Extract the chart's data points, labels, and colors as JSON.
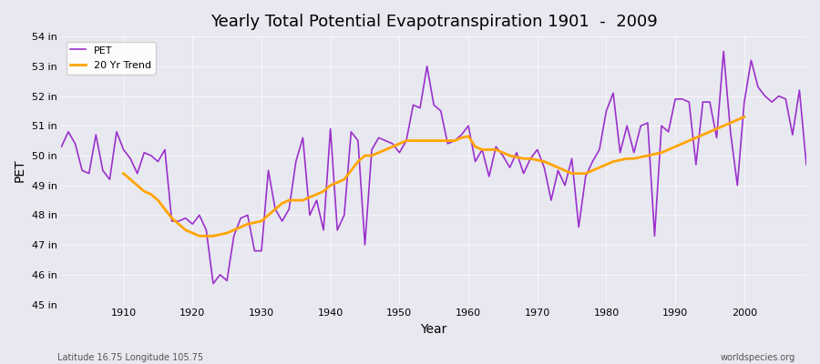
{
  "title": "Yearly Total Potential Evapotranspiration 1901  -  2009",
  "xlabel": "Year",
  "ylabel": "PET",
  "subtitle_left": "Latitude 16.75 Longitude 105.75",
  "subtitle_right": "worldspecies.org",
  "legend_labels": [
    "PET",
    "20 Yr Trend"
  ],
  "pet_color": "#9B30CC",
  "trend_color": "#FFA500",
  "background_color": "#E8E8F0",
  "ylim": [
    45,
    54
  ],
  "yticks": [
    45,
    46,
    47,
    48,
    49,
    50,
    51,
    52,
    53,
    54
  ],
  "ytick_labels": [
    "45 in",
    "46 in",
    "47 in",
    "48 in",
    "49 in",
    "50 in",
    "51 in",
    "52 in",
    "53 in",
    "54 in"
  ],
  "years": [
    1901,
    1902,
    1903,
    1904,
    1905,
    1906,
    1907,
    1908,
    1909,
    1910,
    1911,
    1912,
    1913,
    1914,
    1915,
    1916,
    1917,
    1918,
    1919,
    1920,
    1921,
    1922,
    1923,
    1924,
    1925,
    1926,
    1927,
    1928,
    1929,
    1930,
    1931,
    1932,
    1933,
    1934,
    1935,
    1936,
    1937,
    1938,
    1939,
    1940,
    1941,
    1942,
    1943,
    1944,
    1945,
    1946,
    1947,
    1948,
    1949,
    1950,
    1951,
    1952,
    1953,
    1954,
    1955,
    1956,
    1957,
    1958,
    1959,
    1960,
    1961,
    1962,
    1963,
    1964,
    1965,
    1966,
    1967,
    1968,
    1969,
    1970,
    1971,
    1972,
    1973,
    1974,
    1975,
    1976,
    1977,
    1978,
    1979,
    1980,
    1981,
    1982,
    1983,
    1984,
    1985,
    1986,
    1987,
    1988,
    1989,
    1990,
    1991,
    1992,
    1993,
    1994,
    1995,
    1996,
    1997,
    1998,
    1999,
    2000,
    2001,
    2002,
    2003,
    2004,
    2005,
    2006,
    2007,
    2008,
    2009
  ],
  "pet_values": [
    50.3,
    50.8,
    50.4,
    49.5,
    49.4,
    50.7,
    49.5,
    49.2,
    50.8,
    50.2,
    49.9,
    49.4,
    50.1,
    50.0,
    49.8,
    50.2,
    47.8,
    47.8,
    47.9,
    47.7,
    48.0,
    47.5,
    45.7,
    46.0,
    45.8,
    47.3,
    47.9,
    48.0,
    46.8,
    46.8,
    49.5,
    48.2,
    47.8,
    48.2,
    49.8,
    50.6,
    48.0,
    48.5,
    47.5,
    50.9,
    47.5,
    48.0,
    50.8,
    50.5,
    47.0,
    50.2,
    50.6,
    50.5,
    50.4,
    50.1,
    50.5,
    51.7,
    51.6,
    53.0,
    51.7,
    51.5,
    50.4,
    50.5,
    50.7,
    51.0,
    49.8,
    50.2,
    49.3,
    50.3,
    50.0,
    49.6,
    50.1,
    49.4,
    49.9,
    50.2,
    49.6,
    48.5,
    49.5,
    49.0,
    49.9,
    47.6,
    49.3,
    49.8,
    50.2,
    51.5,
    52.1,
    50.1,
    51.0,
    50.1,
    51.0,
    51.1,
    47.3,
    51.0,
    50.8,
    51.9,
    51.9,
    51.8,
    49.7,
    51.8,
    51.8,
    50.6,
    53.5,
    50.8,
    49.0,
    51.8,
    53.2,
    52.3,
    52.0,
    51.8,
    52.0,
    51.9,
    50.7,
    52.2,
    49.7
  ],
  "trend_years": [
    1910,
    1911,
    1912,
    1913,
    1914,
    1915,
    1916,
    1917,
    1918,
    1919,
    1920,
    1921,
    1922,
    1923,
    1924,
    1925,
    1926,
    1927,
    1928,
    1929,
    1930,
    1931,
    1932,
    1933,
    1934,
    1935,
    1936,
    1937,
    1938,
    1939,
    1940,
    1941,
    1942,
    1943,
    1944,
    1945,
    1946,
    1947,
    1948,
    1949,
    1950,
    1951,
    1952,
    1953,
    1954,
    1955,
    1956,
    1957,
    1958,
    1959,
    1960,
    1961,
    1962,
    1963,
    1964,
    1965,
    1966,
    1967,
    1968,
    1969,
    1970,
    1971,
    1972,
    1973,
    1974,
    1975,
    1976,
    1977,
    1978,
    1979,
    1980,
    1981,
    1982,
    1983,
    1984,
    1985,
    1986,
    1987,
    1988,
    1989,
    1990,
    1991,
    1992,
    1993,
    1994,
    1995,
    1996,
    1997,
    1998,
    1999,
    2000
  ],
  "trend_values": [
    49.4,
    49.2,
    49.0,
    48.8,
    48.7,
    48.5,
    48.2,
    47.9,
    47.7,
    47.5,
    47.4,
    47.3,
    47.3,
    47.3,
    47.35,
    47.4,
    47.5,
    47.6,
    47.7,
    47.75,
    47.8,
    48.0,
    48.2,
    48.4,
    48.5,
    48.5,
    48.5,
    48.6,
    48.7,
    48.8,
    49.0,
    49.1,
    49.2,
    49.5,
    49.8,
    50.0,
    50.0,
    50.1,
    50.2,
    50.3,
    50.4,
    50.5,
    50.5,
    50.5,
    50.5,
    50.5,
    50.5,
    50.5,
    50.5,
    50.6,
    50.65,
    50.3,
    50.2,
    50.2,
    50.2,
    50.1,
    50.0,
    49.95,
    49.9,
    49.9,
    49.85,
    49.8,
    49.7,
    49.6,
    49.5,
    49.4,
    49.4,
    49.4,
    49.5,
    49.6,
    49.7,
    49.8,
    49.85,
    49.9,
    49.9,
    49.95,
    50.0,
    50.05,
    50.1,
    50.2,
    50.3,
    50.4,
    50.5,
    50.6,
    50.7,
    50.8,
    50.9,
    51.0,
    51.1,
    51.2,
    51.3
  ],
  "xticks": [
    1910,
    1920,
    1930,
    1940,
    1950,
    1960,
    1970,
    1980,
    1990,
    2000
  ]
}
